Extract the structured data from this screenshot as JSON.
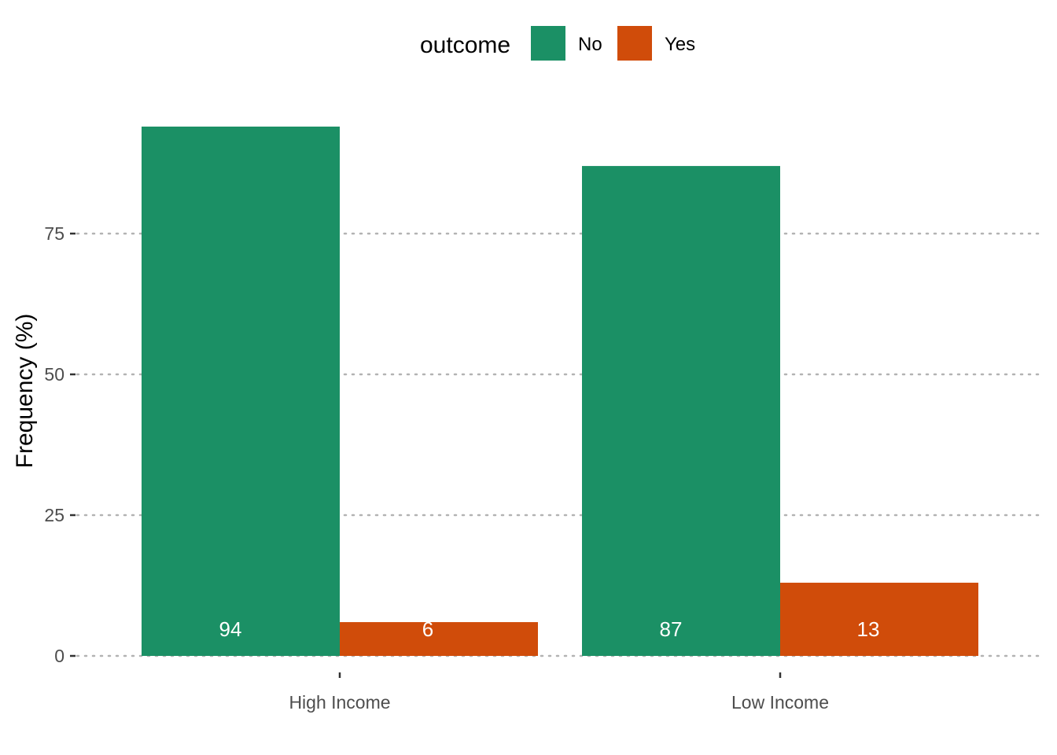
{
  "chart_data": {
    "type": "bar",
    "title": "",
    "xlabel": "",
    "ylabel": "Frequency (%)",
    "categories": [
      "High Income",
      "Low Income"
    ],
    "series": [
      {
        "name": "No",
        "values": [
          94,
          87
        ],
        "labels": [
          "94",
          "87"
        ],
        "color": "#1b9065"
      },
      {
        "name": "Yes",
        "values": [
          6,
          13
        ],
        "labels": [
          "6",
          "13"
        ],
        "color": "#d04c0a"
      }
    ],
    "yticks": [
      0,
      25,
      50,
      75
    ],
    "ylim": [
      0,
      100
    ],
    "grid": "horizontal dotted",
    "legend": {
      "title": "outcome",
      "position": "top"
    }
  }
}
